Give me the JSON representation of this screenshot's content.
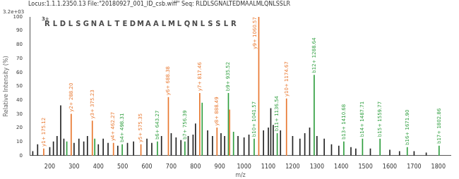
{
  "chart_data": {
    "type": "bar",
    "title": "Locus:1.1.1.2350.13 File:\"20180927_001_ID_csb.wiff\" Seq: RLDLSGNALTEDMAALMLQNLSSLR",
    "y_max_label": "3.2e+03",
    "charge": "3+",
    "sequence": "RLDLSGNALTEDMAALMLQNLSSLR",
    "x_label": "m/z",
    "y_label": "Relative Intensity (%)",
    "x": [
      130,
      150,
      175.12,
      200,
      215,
      230,
      245,
      258,
      270.14,
      288.2,
      300,
      320,
      340,
      355,
      375.23,
      385.24,
      400,
      420,
      440,
      462.27,
      480,
      498.31,
      520,
      545,
      575.35,
      600,
      620,
      643.27,
      660,
      688.38,
      700,
      720,
      740,
      756.39,
      770,
      790,
      800,
      817.46,
      827.44,
      850,
      870,
      888.49,
      905,
      920,
      935.52,
      940.5,
      956.51,
      975,
      1000,
      1020,
      1041.57,
      1060.57,
      1080,
      1100,
      1110,
      1120,
      1136.54,
      1150,
      1174.67,
      1200,
      1230,
      1250,
      1270,
      1288.64,
      1300,
      1330,
      1360,
      1390,
      1410.68,
      1440,
      1460,
      1487.71,
      1520,
      1559.77,
      1600,
      1640,
      1671.9,
      1700,
      1750,
      1802.86
    ],
    "values": [
      3,
      8,
      5,
      6,
      10,
      14,
      36,
      12,
      10,
      30,
      9,
      12,
      10,
      14,
      25,
      12,
      8,
      12,
      9,
      9,
      7,
      8,
      9,
      10,
      8,
      12,
      9,
      10,
      14,
      42,
      16,
      13,
      11,
      10,
      14,
      15,
      23,
      45,
      38,
      18,
      14,
      20,
      16,
      14,
      45,
      33,
      17,
      14,
      13,
      15,
      12,
      100,
      18,
      20,
      34,
      22,
      16,
      18,
      41,
      14,
      12,
      16,
      20,
      58,
      14,
      12,
      8,
      7,
      10,
      6,
      5,
      12,
      5,
      12,
      4,
      3,
      6,
      3,
      2,
      7
    ],
    "colors": [
      "#222222",
      "#222222",
      "#e8762d",
      "#222222",
      "#222222",
      "#222222",
      "#222222",
      "#222222",
      "#2e9e3e",
      "#e8762d",
      "#222222",
      "#222222",
      "#222222",
      "#222222",
      "#e8762d",
      "#2e9e3e",
      "#222222",
      "#222222",
      "#222222",
      "#e8762d",
      "#222222",
      "#2e9e3e",
      "#222222",
      "#222222",
      "#e8762d",
      "#222222",
      "#222222",
      "#2e9e3e",
      "#222222",
      "#e8762d",
      "#222222",
      "#222222",
      "#222222",
      "#2e9e3e",
      "#222222",
      "#222222",
      "#222222",
      "#e8762d",
      "#2e9e3e",
      "#222222",
      "#222222",
      "#e8762d",
      "#222222",
      "#222222",
      "#2e9e3e",
      "#e8762d",
      "#2e9e3e",
      "#222222",
      "#222222",
      "#222222",
      "#2e9e3e",
      "#e8762d",
      "#222222",
      "#222222",
      "#222222",
      "#222222",
      "#2e9e3e",
      "#222222",
      "#e8762d",
      "#222222",
      "#222222",
      "#222222",
      "#222222",
      "#2e9e3e",
      "#222222",
      "#222222",
      "#222222",
      "#222222",
      "#2e9e3e",
      "#222222",
      "#222222",
      "#2e9e3e",
      "#222222",
      "#2e9e3e",
      "#222222",
      "#222222",
      "#2e9e3e",
      "#222222",
      "#222222",
      "#2e9e3e"
    ],
    "annotations": [
      {
        "x": 175.12,
        "text": "y1+ 175.12"
      },
      {
        "x": 288.2,
        "text": "y2+ 288.20"
      },
      {
        "x": 375.23,
        "text": "y3+ 375.23"
      },
      {
        "x": 462.27,
        "text": "y4+ 462.27"
      },
      {
        "x": 498.31,
        "text": "b4+ 498.31"
      },
      {
        "x": 575.35,
        "text": "y5+ 575.35"
      },
      {
        "x": 643.27,
        "text": "b6+ 643.27"
      },
      {
        "x": 688.38,
        "text": "y6+ 688.38"
      },
      {
        "x": 756.39,
        "text": "b7+ 756.39"
      },
      {
        "x": 817.46,
        "text": "y7+ 817.46"
      },
      {
        "x": 888.49,
        "text": "y8+ 888.49"
      },
      {
        "x": 935.52,
        "text": "b9+ 935.52"
      },
      {
        "x": 1041.57,
        "text": "b10+ 1041.57"
      },
      {
        "x": 1060.57,
        "text": "y9+ 1060.57"
      },
      {
        "x": 1136.54,
        "text": "b11+ 1136.54"
      },
      {
        "x": 1174.67,
        "text": "y10+ 1174.67"
      },
      {
        "x": 1288.64,
        "text": "b12+ 1288.64"
      },
      {
        "x": 1410.68,
        "text": "b13+ 1410.68"
      },
      {
        "x": 1487.71,
        "text": "b14+ 1487.71"
      },
      {
        "x": 1559.77,
        "text": "b15+ 1559.77"
      },
      {
        "x": 1671.9,
        "text": "b16+ 1671.90"
      },
      {
        "x": 1802.86,
        "text": "b17+ 1802.86"
      }
    ],
    "xlim": [
      120,
      1850
    ],
    "xticks": [
      200,
      300,
      400,
      500,
      600,
      700,
      800,
      900,
      1000,
      1100,
      1200,
      1300,
      1400,
      1500,
      1600,
      1700,
      1800
    ],
    "ylim": [
      0,
      100
    ],
    "yticks": [
      0,
      10,
      20,
      30,
      40,
      50,
      60,
      70,
      80,
      90,
      100
    ],
    "grid": false
  }
}
